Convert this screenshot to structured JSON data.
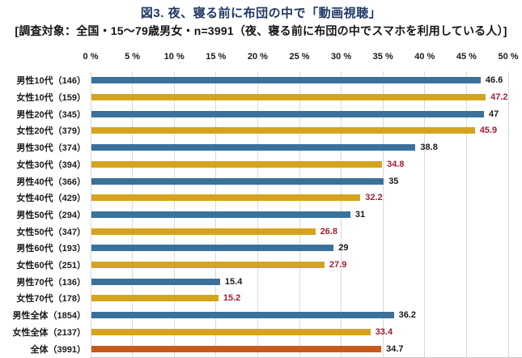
{
  "title": "図3. 夜、寝る前に布団の中で「動画視聴」",
  "subtitle": "[調査対象：全国・15～79歳男女・n=3991（夜、寝る前に布団の中でスマホを利用している人）]",
  "colors": {
    "male_bar": "#3a719b",
    "female_bar": "#d5a41e",
    "total_bar": "#c95a1c",
    "value_female": "#a01d33",
    "value_default": "#1a1a1a",
    "title_text": "#1f3864",
    "subtitle_text": "#151515",
    "gridline": "#d9d9d9"
  },
  "chart_data": {
    "type": "bar",
    "orientation": "horizontal",
    "title": "図3. 夜、寝る前に布団の中で「動画視聴」",
    "xlabel": "",
    "ylabel": "",
    "x_axis": {
      "min": 0,
      "max": 50,
      "unit": "%",
      "ticks": [
        "0 %",
        "5 %",
        "10 %",
        "15 %",
        "20 %",
        "25 %",
        "30 %",
        "35 %",
        "40 %",
        "45 %",
        "50 %"
      ],
      "grid": true,
      "position": "top"
    },
    "rows": [
      {
        "label": "男性10代（146）",
        "value": 46.6,
        "display": "46.6",
        "group": "male"
      },
      {
        "label": "女性10代（159）",
        "value": 47.2,
        "display": "47.2",
        "group": "female"
      },
      {
        "label": "男性20代（345）",
        "value": 47.0,
        "display": "47",
        "group": "male"
      },
      {
        "label": "女性20代（379）",
        "value": 45.9,
        "display": "45.9",
        "group": "female"
      },
      {
        "label": "男性30代（374）",
        "value": 38.8,
        "display": "38.8",
        "group": "male"
      },
      {
        "label": "女性30代（394）",
        "value": 34.8,
        "display": "34.8",
        "group": "female"
      },
      {
        "label": "男性40代（366）",
        "value": 35.0,
        "display": "35",
        "group": "male"
      },
      {
        "label": "女性40代（429）",
        "value": 32.2,
        "display": "32.2",
        "group": "female"
      },
      {
        "label": "男性50代（294）",
        "value": 31.0,
        "display": "31",
        "group": "male"
      },
      {
        "label": "女性50代（347）",
        "value": 26.8,
        "display": "26.8",
        "group": "female"
      },
      {
        "label": "男性60代（193）",
        "value": 29.0,
        "display": "29",
        "group": "male"
      },
      {
        "label": "女性60代（251）",
        "value": 27.9,
        "display": "27.9",
        "group": "female"
      },
      {
        "label": "男性70代（136）",
        "value": 15.4,
        "display": "15.4",
        "group": "male"
      },
      {
        "label": "女性70代（178）",
        "value": 15.2,
        "display": "15.2",
        "group": "female"
      },
      {
        "label": "男性全体（1854）",
        "value": 36.2,
        "display": "36.2",
        "group": "male"
      },
      {
        "label": "女性全体（2137）",
        "value": 33.4,
        "display": "33.4",
        "group": "female"
      },
      {
        "label": "全体（3991）",
        "value": 34.7,
        "display": "34.7",
        "group": "total"
      }
    ]
  }
}
